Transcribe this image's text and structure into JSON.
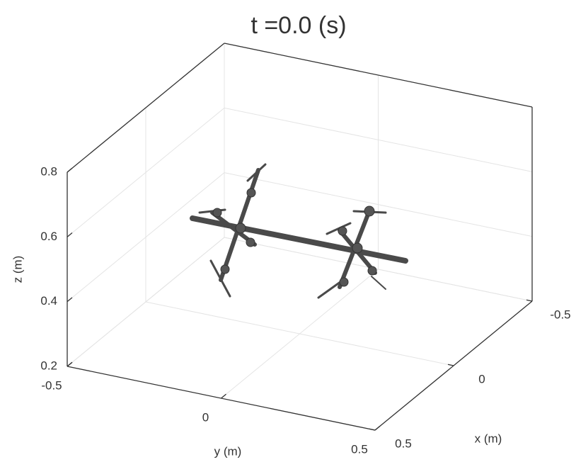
{
  "chart_data": {
    "type": "scatter3d",
    "title": "t =0.0 (s)",
    "xlabel": "x (m)",
    "ylabel": "y (m)",
    "zlabel": "z (m)",
    "xlim": [
      -0.5,
      0.5
    ],
    "xticks": [
      -0.5,
      0,
      0.5
    ],
    "ylim": [
      -0.5,
      0.5
    ],
    "yticks": [
      -0.5,
      0,
      0.5
    ],
    "zlim": [
      0.2,
      0.8
    ],
    "zticks": [
      0.2,
      0.4,
      0.6,
      0.8
    ],
    "grid": true
  }
}
